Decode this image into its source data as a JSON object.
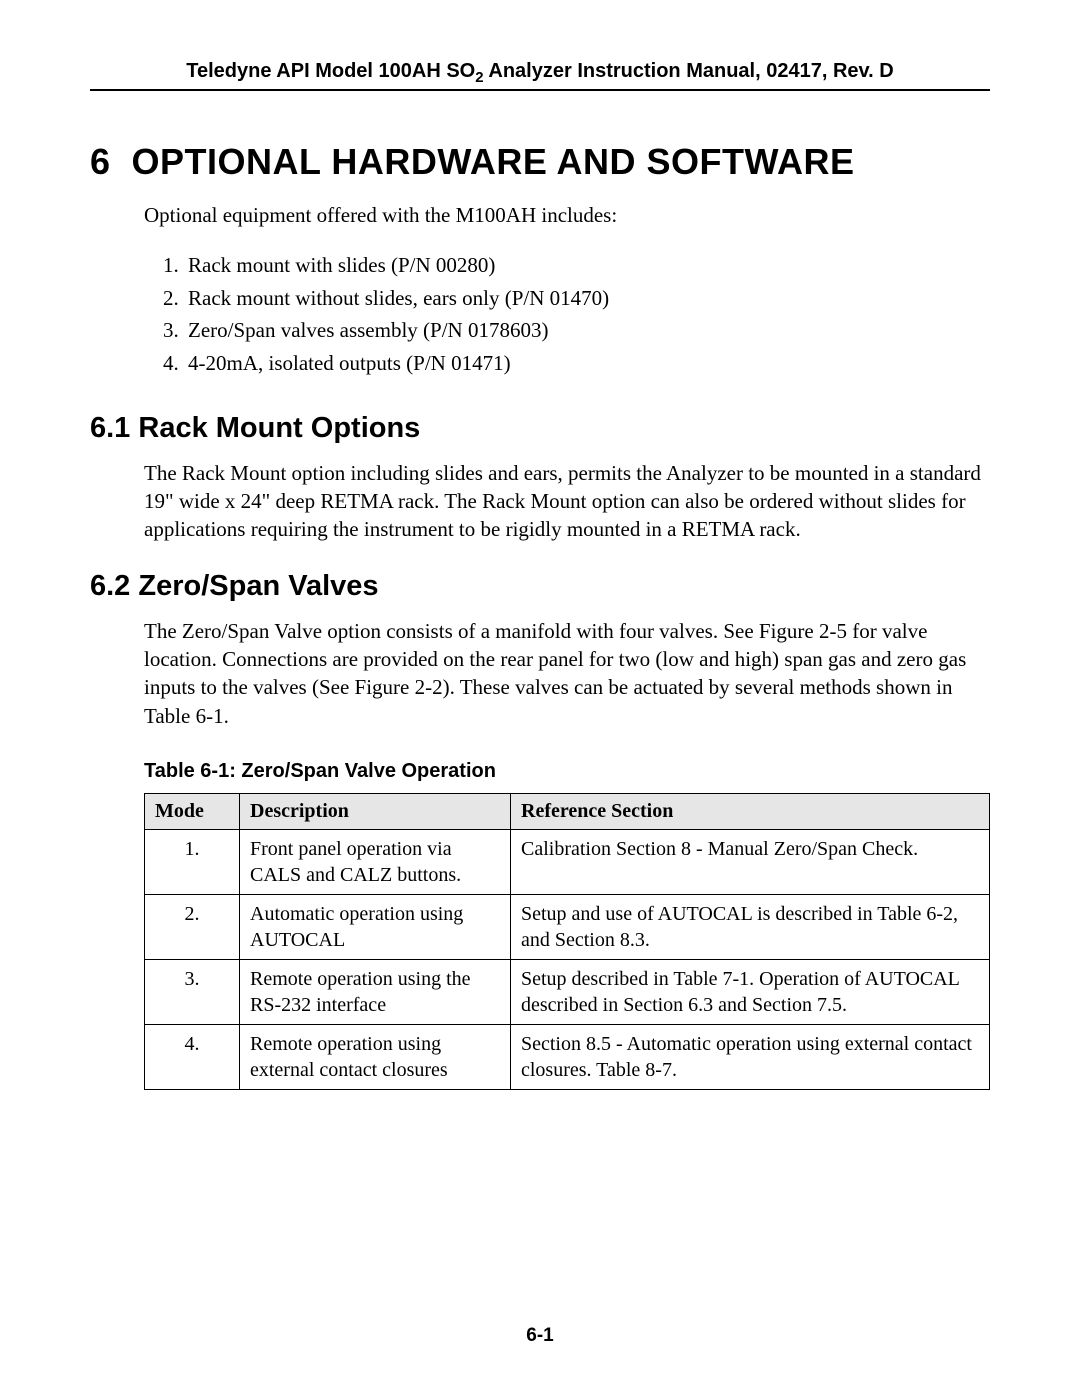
{
  "header": {
    "prefix": "Teledyne API Model 100AH SO",
    "sub": "2",
    "suffix": " Analyzer Instruction Manual, 02417, Rev. D"
  },
  "chapter": {
    "number": "6",
    "title": "OPTIONAL HARDWARE AND SOFTWARE"
  },
  "intro": "Optional equipment offered with the M100AH includes:",
  "list": [
    "Rack mount with slides (P/N 00280)",
    "Rack mount without slides, ears only (P/N 01470)",
    "Zero/Span valves assembly (P/N 0178603)",
    "4-20mA, isolated outputs (P/N 01471)"
  ],
  "sections": {
    "s61": {
      "heading": "6.1  Rack Mount Options",
      "body": "The Rack Mount option including slides and ears, permits the Analyzer to be mounted in a standard 19\" wide x 24\" deep RETMA rack. The Rack Mount option can also be ordered without slides for applications requiring the instrument to be rigidly mounted in a RETMA rack."
    },
    "s62": {
      "heading": "6.2  Zero/Span Valves",
      "body": "The Zero/Span Valve option consists of a manifold with four valves. See Figure 2-5 for valve location. Connections are provided on the rear panel for two (low and high) span gas and zero gas inputs to the valves (See Figure 2-2). These valves can be actuated by several methods shown in Table 6-1."
    }
  },
  "table": {
    "caption": "Table 6-1:  Zero/Span Valve Operation",
    "columns": [
      "Mode",
      "Description",
      "Reference Section"
    ],
    "rows": [
      {
        "mode": "1.",
        "desc": "Front panel operation via CALS and CALZ buttons.",
        "ref": "Calibration Section 8 - Manual Zero/Span Check."
      },
      {
        "mode": "2.",
        "desc": "Automatic operation using AUTOCAL",
        "ref": "Setup and use of AUTOCAL is described in Table 6-2, and Section 8.3."
      },
      {
        "mode": "3.",
        "desc": "Remote operation using the RS-232 interface",
        "ref": "Setup described in Table 7-1. Operation of AUTOCAL described in Section 6.3 and Section 7.5."
      },
      {
        "mode": "4.",
        "desc": "Remote operation using external contact closures",
        "ref": "Section 8.5 - Automatic operation using external contact closures. Table 8-7."
      }
    ]
  },
  "page_number": "6-1"
}
